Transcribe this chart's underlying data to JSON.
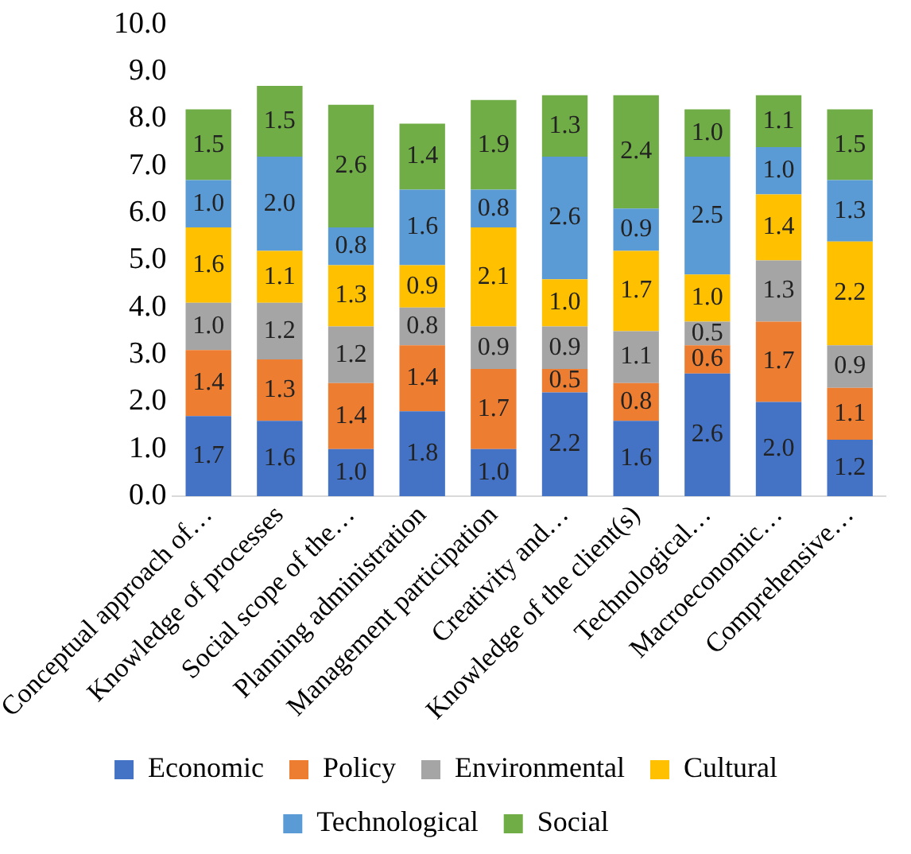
{
  "chart_data": {
    "type": "bar",
    "stacked": true,
    "categories": [
      "Conceptual approach of…",
      "Knowledge of processes",
      "Social scope of the…",
      "Planning administration",
      "Management participation",
      "Creativity and…",
      "Knowledge of the client(s)",
      "Technological…",
      "Macroeconomic…",
      "Comprehensive…"
    ],
    "series": [
      {
        "name": "Economic",
        "color": "#4472c4",
        "values": [
          1.7,
          1.6,
          1.0,
          1.8,
          1.0,
          2.2,
          1.6,
          2.6,
          2.0,
          1.2
        ],
        "value_labels": [
          "1.7",
          "1.6",
          "1.0",
          "1.8",
          "1.0",
          "2.2",
          "1.6",
          "2.6",
          "2.0",
          "1.2"
        ]
      },
      {
        "name": "Policy",
        "color": "#ed7d31",
        "values": [
          1.4,
          1.3,
          1.4,
          1.4,
          1.7,
          0.5,
          0.8,
          0.6,
          1.7,
          1.1
        ],
        "value_labels": [
          "1.4",
          "1.3",
          "1.4",
          "1.4",
          "1.7",
          "0.5",
          "0.8",
          "0.6",
          "1.7",
          "1.1"
        ]
      },
      {
        "name": "Environmental",
        "color": "#a5a5a5",
        "values": [
          1.0,
          1.2,
          1.2,
          0.8,
          0.9,
          0.9,
          1.1,
          0.5,
          1.3,
          0.9
        ],
        "value_labels": [
          "1.0",
          "1.2",
          "1.2",
          "0.8",
          "0.9",
          "0.9",
          "1.1",
          "0.5",
          "1.3",
          "0.9"
        ]
      },
      {
        "name": "Cultural",
        "color": "#ffc000",
        "values": [
          1.6,
          1.1,
          1.3,
          0.9,
          2.1,
          1.0,
          1.7,
          1.0,
          1.4,
          2.2
        ],
        "value_labels": [
          "1.6",
          "1.1",
          "1.3",
          "0.9",
          "2.1",
          "1.0",
          "1.7",
          "1.0",
          "1.4",
          "2.2"
        ]
      },
      {
        "name": "Technological",
        "color": "#5b9bd5",
        "values": [
          1.0,
          2.0,
          0.8,
          1.6,
          0.8,
          2.6,
          0.9,
          2.5,
          1.0,
          1.3
        ],
        "value_labels": [
          "1.0",
          "2.0",
          "0.8",
          "1.6",
          "0.8",
          "2.6",
          "0.9",
          "2.5",
          "1.0",
          "1.3"
        ]
      },
      {
        "name": "Social",
        "color": "#70ad47",
        "values": [
          1.5,
          1.5,
          2.6,
          1.4,
          1.9,
          1.3,
          2.4,
          1.0,
          1.1,
          1.5
        ],
        "value_labels": [
          "1.5",
          "1.5",
          "2.6",
          "1.4",
          "1.9",
          "1.3",
          "2.4",
          "1.0",
          "1.1",
          "1.5"
        ]
      }
    ],
    "ylim": [
      0,
      10
    ],
    "yticks": [
      {
        "value": 0,
        "label": "0.0"
      },
      {
        "value": 1,
        "label": "1.0"
      },
      {
        "value": 2,
        "label": "2.0"
      },
      {
        "value": 3,
        "label": "3.0"
      },
      {
        "value": 4,
        "label": "4.0"
      },
      {
        "value": 5,
        "label": "5.0"
      },
      {
        "value": 6,
        "label": "6.0"
      },
      {
        "value": 7,
        "label": "7.0"
      },
      {
        "value": 8,
        "label": "8.0"
      },
      {
        "value": 9,
        "label": "9.0"
      },
      {
        "value": 10,
        "label": "10.0"
      }
    ],
    "grid": false,
    "legend": "bottom"
  }
}
